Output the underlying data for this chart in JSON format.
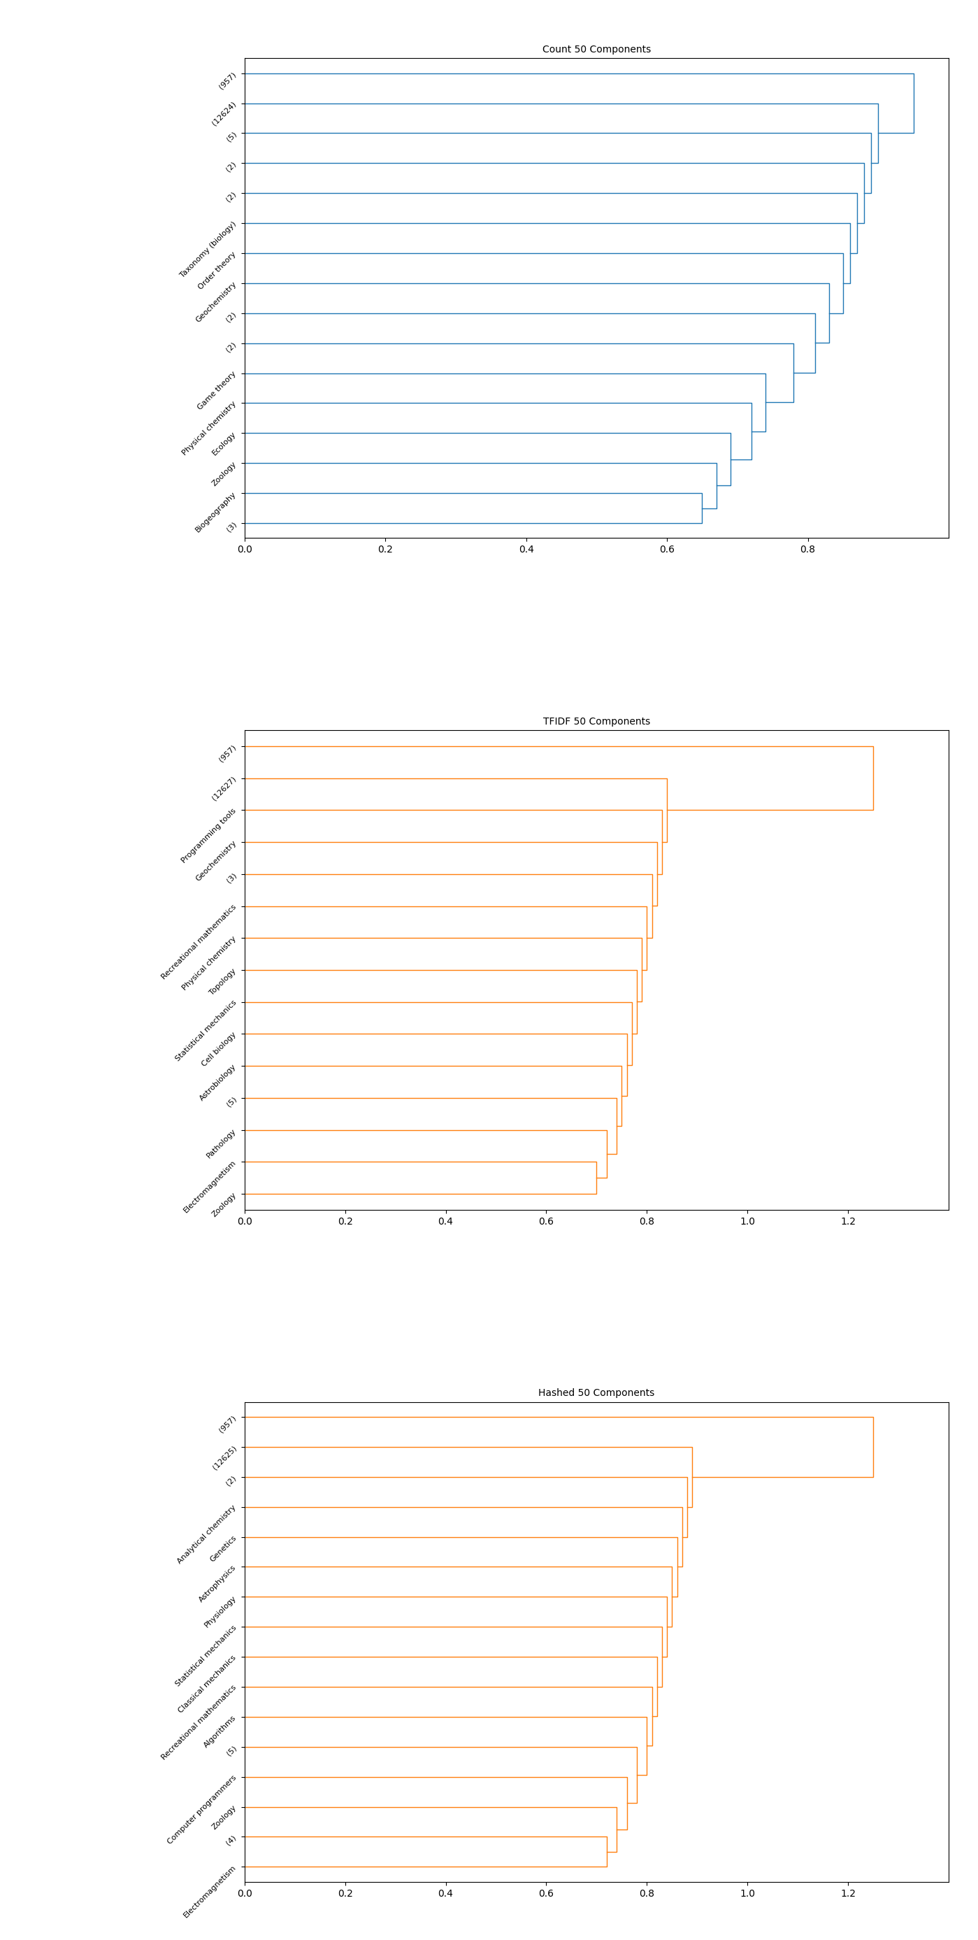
{
  "figure_title": "",
  "subplots": [
    {
      "title": "Count 50 Components",
      "color": "#1f77b4",
      "labels": [
        "(12624)",
        "(5)",
        "(2)",
        "(2)",
        "Taxonomy (biology)",
        "Order theory",
        "Geochemistry",
        "(2)",
        "(2)",
        "Game theory",
        "Physical chemistry",
        "Ecology",
        "Zoology",
        "Biogeography",
        "(3)",
        "(957)"
      ],
      "leaf_heights": [
        16,
        15,
        14,
        13,
        12,
        11,
        10,
        9,
        8,
        7,
        6,
        5,
        4,
        3,
        2,
        1
      ],
      "xlim": [
        0.0,
        1.0
      ],
      "xticks": [
        0.0,
        0.2,
        0.4,
        0.6,
        0.8
      ]
    },
    {
      "title": "TFIDF 50 Components",
      "color": "#ff7f0e",
      "labels": [
        "(12627)",
        "Programming tools",
        "Geochemistry",
        "(3)",
        "Recreational mathematics",
        "Physical chemistry",
        "Topology",
        "Statistical mechanics",
        "Cell biology",
        "Astrobiology",
        "(5)",
        "Pathology",
        "Electromagnetism",
        "Zoology",
        "(957)"
      ],
      "leaf_heights": [
        15,
        14,
        13,
        12,
        11,
        10,
        9,
        8,
        7,
        6,
        5,
        4,
        3,
        2,
        1
      ],
      "xlim": [
        0.0,
        1.4
      ],
      "xticks": [
        0.0,
        0.2,
        0.4,
        0.6,
        0.8,
        1.0,
        1.2
      ]
    },
    {
      "title": "Hashed 50 Components",
      "color": "#ff7f0e",
      "labels": [
        "(12625)",
        "(2)",
        "Analytical chemistry",
        "Genetics",
        "Astrophysics",
        "Physiology",
        "Classical mechanics",
        "Recreational mathematics",
        "Algorithms",
        "(5)",
        "Computer programmers",
        "Zoology",
        "(4)",
        "Electromagnetism",
        "(957)"
      ],
      "leaf_heights": [
        15,
        14,
        13,
        12,
        11,
        10,
        9,
        8,
        7,
        6,
        5,
        4,
        3,
        2,
        1
      ],
      "xlim": [
        0.0,
        1.4
      ],
      "xticks": [
        0.0,
        0.2,
        0.4,
        0.6,
        0.8,
        1.0,
        1.2
      ]
    }
  ],
  "bg_color": "white",
  "label_fontsize": 9
}
